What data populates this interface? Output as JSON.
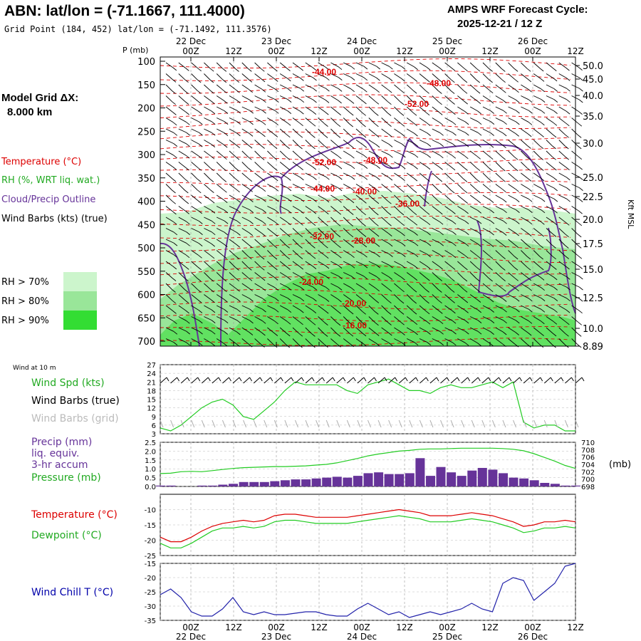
{
  "header": {
    "station_title": "ABN:  lat/lon = (-71.1667, 111.4000)",
    "grid_point": "Grid Point (184, 452) lat/lon = (-71.1492, 111.3576)",
    "cycle_title": "AMPS WRF Forecast Cycle:",
    "cycle_value": "2025-12-21 / 12  Z"
  },
  "time_axis": {
    "hour_labels": [
      "00Z",
      "12Z",
      "00Z",
      "12Z",
      "00Z",
      "12Z",
      "00Z",
      "12Z",
      "00Z",
      "12Z"
    ],
    "date_labels": [
      "22 Dec",
      "23 Dec",
      "24 Dec",
      "25 Dec",
      "26 Dec"
    ]
  },
  "legend": {
    "model_grid_label": "Model Grid ΔX:",
    "model_grid_value": "8.000 km",
    "temperature": "Temperature (°C)",
    "rh": "RH (%, WRT liq. wat.)",
    "cloud": "Cloud/Precip Outline",
    "wind": "Wind Barbs (kts) (true)",
    "rh70": "RH > 70%",
    "rh80": "RH > 80%",
    "rh90": "RH > 90%",
    "colors": {
      "temperature": "#dd0000",
      "rh_label": "#22aa22",
      "cloud": "#663399",
      "rh70": "#ccf5cc",
      "rh80": "#99e699",
      "rh90": "#33dd33"
    }
  },
  "panels": {
    "wind10m_title": "Wind at 10 m",
    "wind_speed_label": "Wind Spd (kts)",
    "wind_true_label": "Wind Barbs (true)",
    "wind_grid_label": "Wind Barbs (grid)",
    "precip_label1": "Precip (mm)",
    "precip_label2": "liq. equiv.",
    "precip_label3": "3-hr accum",
    "pressure_label": "Pressure (mb)",
    "mb_unit": "(mb)",
    "temp_label": "Temperature (°C)",
    "dew_label": "Dewpoint (°C)",
    "chill_label": "Wind Chill T (°C)"
  },
  "chart_data": [
    {
      "type": "heatmap",
      "ylabel": "P (mb)",
      "ylabel_right": "Kft MSL",
      "pressure_ticks": [
        100,
        150,
        200,
        250,
        300,
        350,
        400,
        450,
        500,
        550,
        600,
        650,
        700
      ],
      "height_ticks_kft": [
        "50.0",
        "45.0",
        "40.0",
        "35.0",
        "30.0",
        "25.0",
        "22.5",
        "20.0",
        "17.5",
        "15.0",
        "12.5",
        "10.0",
        "8.89"
      ],
      "isotherm_labels": [
        "-44.00",
        "-48.00",
        "-52.00",
        "-52.00",
        "-48.00",
        "-44.00",
        "-40.00",
        "-36.00",
        "-32.00",
        "-28.00",
        "-24.00",
        "-20.00",
        "-16.00"
      ]
    },
    {
      "type": "line",
      "title": "Wind at 10 m",
      "ylabel": "Wind Spd (kts)",
      "yticks": [
        3,
        6,
        9,
        12,
        15,
        18,
        21,
        24,
        27
      ],
      "ylim": [
        3,
        27
      ],
      "x_hours": [
        0,
        3,
        6,
        9,
        12,
        15,
        18,
        21,
        24,
        27,
        30,
        33,
        36,
        39,
        42,
        45,
        48,
        51,
        54,
        57,
        60,
        63,
        66,
        69,
        72,
        75,
        78,
        81,
        84,
        87,
        90,
        93,
        96,
        99,
        102,
        105,
        108,
        111,
        114,
        117,
        120
      ],
      "series": [
        {
          "name": "Wind Spd (kts)",
          "values": [
            5,
            4,
            6,
            9,
            12,
            14,
            15,
            13,
            9,
            8,
            11,
            14,
            18,
            21,
            20,
            20,
            20,
            20,
            18,
            17,
            20,
            21,
            22,
            20,
            18,
            18,
            17,
            19,
            20,
            19,
            19,
            20,
            21,
            19,
            21,
            7,
            5,
            6,
            6,
            4,
            4
          ]
        }
      ]
    },
    {
      "type": "bar",
      "ylabel": "Precip (mm)",
      "yticks": [
        0.0,
        0.5,
        1.0,
        1.5,
        2.0,
        2.5
      ],
      "ylim": [
        0,
        2.5
      ],
      "right_ticks_mb": [
        698,
        700,
        702,
        704,
        706,
        708,
        710
      ],
      "x_hours": [
        0,
        3,
        6,
        9,
        12,
        15,
        18,
        21,
        24,
        27,
        30,
        33,
        36,
        39,
        42,
        45,
        48,
        51,
        54,
        57,
        60,
        63,
        66,
        69,
        72,
        75,
        78,
        81,
        84,
        87,
        90,
        93,
        96,
        99,
        102,
        105,
        108,
        111,
        114,
        117,
        120
      ],
      "series": [
        {
          "name": "Precip (mm)",
          "values": [
            0.05,
            0.05,
            0.0,
            0.0,
            0.05,
            0.05,
            0.1,
            0.15,
            0.25,
            0.25,
            0.25,
            0.3,
            0.35,
            0.4,
            0.4,
            0.45,
            0.5,
            0.55,
            0.5,
            0.6,
            0.75,
            0.8,
            0.7,
            0.7,
            0.75,
            1.6,
            0.6,
            1.1,
            0.8,
            0.6,
            0.9,
            1.05,
            0.95,
            0.75,
            0.5,
            0.45,
            0.35,
            0.2,
            0.15,
            0.05,
            0.05
          ]
        },
        {
          "name": "Pressure (mb)",
          "values": [
            701.5,
            701.6,
            702.0,
            702.1,
            702.0,
            702.3,
            702.6,
            702.9,
            703.1,
            703.2,
            703.3,
            703.4,
            703.4,
            703.5,
            703.6,
            703.8,
            704.0,
            704.4,
            705.0,
            705.6,
            706.3,
            706.8,
            707.2,
            707.6,
            707.8,
            708.1,
            708.2,
            708.2,
            708.3,
            708.4,
            708.4,
            708.4,
            708.4,
            708.3,
            708.1,
            707.7,
            706.9,
            705.9,
            704.9,
            703.7,
            702.9
          ]
        }
      ]
    },
    {
      "type": "line",
      "yticks": [
        -25,
        -20,
        -15,
        -10
      ],
      "ylim": [
        -25,
        -5
      ],
      "x_hours": [
        0,
        3,
        6,
        9,
        12,
        15,
        18,
        21,
        24,
        27,
        30,
        33,
        36,
        39,
        42,
        45,
        48,
        51,
        54,
        57,
        60,
        63,
        66,
        69,
        72,
        75,
        78,
        81,
        84,
        87,
        90,
        93,
        96,
        99,
        102,
        105,
        108,
        111,
        114,
        117,
        120
      ],
      "series": [
        {
          "name": "Temperature (°C)",
          "values": [
            -19,
            -20.5,
            -20.5,
            -19,
            -17,
            -15.5,
            -14.5,
            -14,
            -13.5,
            -14,
            -13.5,
            -12,
            -11.5,
            -11.5,
            -12,
            -12.5,
            -12.5,
            -12.5,
            -12.5,
            -12,
            -11.5,
            -11,
            -10.5,
            -10,
            -10.5,
            -11,
            -12,
            -12,
            -12,
            -11.5,
            -11,
            -11.5,
            -12,
            -13,
            -14,
            -15.5,
            -15,
            -14,
            -14,
            -13.5,
            -14
          ]
        },
        {
          "name": "Dewpoint (°C)",
          "values": [
            -21,
            -22.5,
            -22.5,
            -21,
            -19,
            -17,
            -16,
            -16,
            -15.5,
            -16,
            -15.5,
            -14,
            -13.5,
            -13.5,
            -14,
            -14.5,
            -14.5,
            -14.5,
            -14.5,
            -14,
            -13.5,
            -13,
            -12.5,
            -12,
            -12.5,
            -13,
            -14,
            -14,
            -14,
            -13.5,
            -13,
            -13.5,
            -14,
            -15,
            -16,
            -17.5,
            -17,
            -16,
            -16,
            -15.5,
            -16
          ]
        }
      ]
    },
    {
      "type": "line",
      "yticks": [
        -35,
        -30,
        -25,
        -20,
        -15
      ],
      "ylim": [
        -35,
        -15
      ],
      "x_hours": [
        0,
        3,
        6,
        9,
        12,
        15,
        18,
        21,
        24,
        27,
        30,
        33,
        36,
        39,
        42,
        45,
        48,
        51,
        54,
        57,
        60,
        63,
        66,
        69,
        72,
        75,
        78,
        81,
        84,
        87,
        90,
        93,
        96,
        99,
        102,
        105,
        108,
        111,
        114,
        117,
        120
      ],
      "series": [
        {
          "name": "Wind Chill T (°C)",
          "values": [
            -26,
            -24,
            -27,
            -32,
            -33.5,
            -33.5,
            -31,
            -27,
            -32,
            -33,
            -32,
            -33,
            -33,
            -32.5,
            -32,
            -32,
            -33,
            -33.5,
            -33.5,
            -31,
            -29,
            -31,
            -33,
            -32,
            -34,
            -33,
            -32,
            -33,
            -32,
            -31,
            -29,
            -31,
            -32,
            -22,
            -20,
            -21,
            -28,
            -25,
            -22,
            -16,
            -15
          ]
        }
      ]
    }
  ]
}
